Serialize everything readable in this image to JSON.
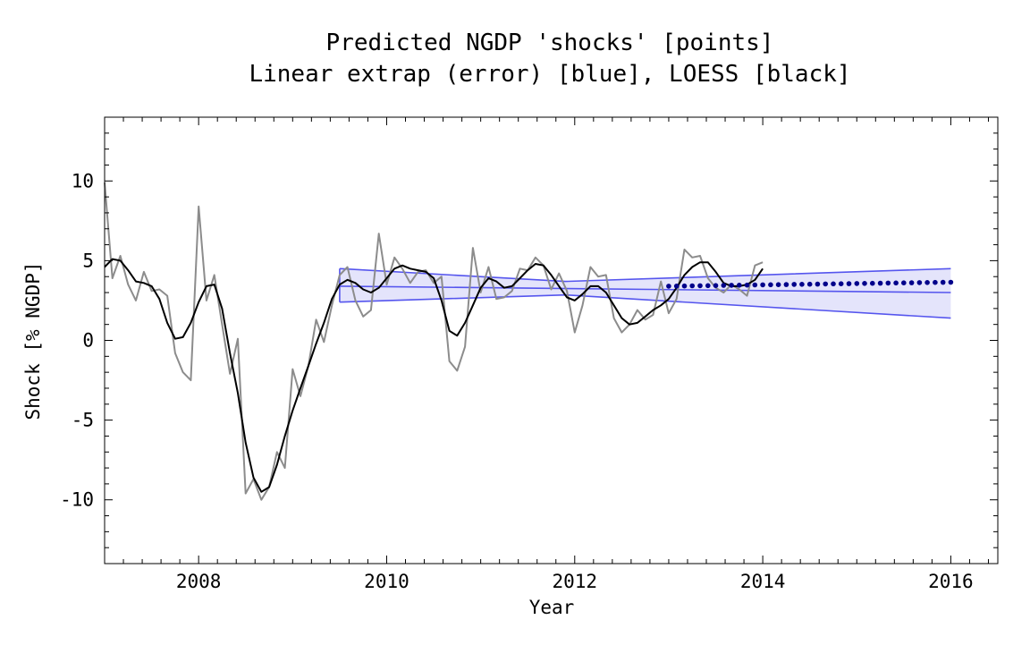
{
  "chart_data": {
    "type": "line",
    "title": "Predicted NGDP 'shocks' [points]",
    "subtitle": "Linear extrap (error) [blue], LOESS [black]",
    "xlabel": "Year",
    "ylabel": "Shock [% NGDP]",
    "xlim": [
      2007.0,
      2016.5
    ],
    "ylim": [
      -14,
      14
    ],
    "x_ticks": [
      2008,
      2010,
      2012,
      2014,
      2016
    ],
    "y_ticks": [
      10,
      5,
      0,
      -5,
      -10
    ],
    "y_tick_labels": [
      "10",
      "5",
      "0",
      "-5",
      "-10"
    ],
    "grid": false,
    "colors": {
      "raw": "#8c8c8c",
      "loess": "#000000",
      "band_fill": "#e4e4fb",
      "band_line": "#5555ee",
      "points": "#00008b"
    },
    "series": [
      {
        "name": "raw data",
        "color": "#8c8c8c",
        "x": [
          2007.0,
          2007.083,
          2007.167,
          2007.25,
          2007.333,
          2007.417,
          2007.5,
          2007.583,
          2007.667,
          2007.75,
          2007.833,
          2007.917,
          2008.0,
          2008.083,
          2008.167,
          2008.25,
          2008.333,
          2008.417,
          2008.5,
          2008.583,
          2008.667,
          2008.75,
          2008.833,
          2008.917,
          2009.0,
          2009.083,
          2009.167,
          2009.25,
          2009.333,
          2009.417,
          2009.5,
          2009.583,
          2009.667,
          2009.75,
          2009.833,
          2009.917,
          2010.0,
          2010.083,
          2010.167,
          2010.25,
          2010.333,
          2010.417,
          2010.5,
          2010.583,
          2010.667,
          2010.75,
          2010.833,
          2010.917,
          2011.0,
          2011.083,
          2011.167,
          2011.25,
          2011.333,
          2011.417,
          2011.5,
          2011.583,
          2011.667,
          2011.75,
          2011.833,
          2011.917,
          2012.0,
          2012.083,
          2012.167,
          2012.25,
          2012.333,
          2012.417,
          2012.5,
          2012.583,
          2012.667,
          2012.75,
          2012.833,
          2012.917,
          2013.0,
          2013.083,
          2013.167,
          2013.25,
          2013.333,
          2013.417,
          2013.5,
          2013.583,
          2013.667,
          2013.75,
          2013.833,
          2013.917,
          2014.0
        ],
        "values": [
          9.9,
          3.9,
          5.3,
          3.5,
          2.5,
          4.3,
          3.1,
          3.2,
          2.8,
          -0.8,
          -2.0,
          -2.5,
          8.4,
          2.5,
          4.1,
          1.0,
          -2.1,
          0.1,
          -9.6,
          -8.7,
          -10.0,
          -9.2,
          -7.0,
          -8.0,
          -1.8,
          -3.5,
          -1.6,
          1.3,
          -0.1,
          2.2,
          4.1,
          4.6,
          2.5,
          1.5,
          1.9,
          6.7,
          3.5,
          5.2,
          4.5,
          3.6,
          4.3,
          4.4,
          3.6,
          4.0,
          -1.3,
          -1.9,
          -0.4,
          5.8,
          3.0,
          4.6,
          2.6,
          2.7,
          3.1,
          4.5,
          4.4,
          5.2,
          4.7,
          3.2,
          4.2,
          3.1,
          0.5,
          2.2,
          4.6,
          4.0,
          4.1,
          1.4,
          0.5,
          1.0,
          1.9,
          1.3,
          1.6,
          3.7,
          1.7,
          2.6,
          5.7,
          5.2,
          5.3,
          3.9,
          3.3,
          3.0,
          3.5,
          3.2,
          2.8,
          4.7,
          4.9
        ]
      },
      {
        "name": "LOESS",
        "color": "#000000",
        "x": [
          2007.0,
          2007.083,
          2007.167,
          2007.25,
          2007.333,
          2007.417,
          2007.5,
          2007.583,
          2007.667,
          2007.75,
          2007.833,
          2007.917,
          2008.0,
          2008.083,
          2008.167,
          2008.25,
          2008.333,
          2008.417,
          2008.5,
          2008.583,
          2008.667,
          2008.75,
          2008.833,
          2008.917,
          2009.0,
          2009.083,
          2009.167,
          2009.25,
          2009.333,
          2009.417,
          2009.5,
          2009.583,
          2009.667,
          2009.75,
          2009.833,
          2009.917,
          2010.0,
          2010.083,
          2010.167,
          2010.25,
          2010.333,
          2010.417,
          2010.5,
          2010.583,
          2010.667,
          2010.75,
          2010.833,
          2010.917,
          2011.0,
          2011.083,
          2011.167,
          2011.25,
          2011.333,
          2011.417,
          2011.5,
          2011.583,
          2011.667,
          2011.75,
          2011.833,
          2011.917,
          2012.0,
          2012.083,
          2012.167,
          2012.25,
          2012.333,
          2012.417,
          2012.5,
          2012.583,
          2012.667,
          2012.75,
          2012.833,
          2012.917,
          2013.0,
          2013.083,
          2013.167,
          2013.25,
          2013.333,
          2013.417,
          2013.5,
          2013.583,
          2013.667,
          2013.75,
          2013.833,
          2013.917,
          2014.0
        ],
        "values": [
          4.6,
          5.1,
          5.0,
          4.4,
          3.7,
          3.6,
          3.4,
          2.6,
          1.1,
          0.1,
          0.2,
          1.1,
          2.4,
          3.4,
          3.5,
          2.0,
          -0.8,
          -3.3,
          -6.4,
          -8.6,
          -9.5,
          -9.2,
          -7.8,
          -6.0,
          -4.4,
          -3.0,
          -1.6,
          -0.2,
          1.1,
          2.6,
          3.5,
          3.8,
          3.6,
          3.2,
          3.0,
          3.3,
          3.9,
          4.5,
          4.7,
          4.5,
          4.4,
          4.3,
          3.9,
          2.5,
          0.6,
          0.3,
          1.1,
          2.2,
          3.3,
          3.9,
          3.7,
          3.3,
          3.4,
          3.9,
          4.4,
          4.8,
          4.7,
          4.1,
          3.4,
          2.7,
          2.5,
          2.9,
          3.4,
          3.4,
          3.0,
          2.2,
          1.4,
          1.0,
          1.1,
          1.5,
          1.9,
          2.2,
          2.6,
          3.3,
          4.1,
          4.6,
          4.9,
          4.9,
          4.3,
          3.6,
          3.4,
          3.4,
          3.5,
          3.8,
          4.5
        ]
      },
      {
        "name": "linear extrapolation",
        "color": "#5555ee",
        "x": [
          2009.5,
          2016.0
        ],
        "values": [
          3.4,
          3.0
        ],
        "upper": [
          4.5,
          4.5
        ],
        "lower": [
          2.4,
          1.4
        ],
        "band_peak": {
          "x": 2011.9,
          "upper": 3.7,
          "lower": 2.85
        }
      },
      {
        "name": "predicted points",
        "color": "#00008b",
        "x_start": 2013.0,
        "x_end": 2016.0,
        "step": 0.0833,
        "y_start": 3.4,
        "y_end": 3.65
      }
    ]
  }
}
